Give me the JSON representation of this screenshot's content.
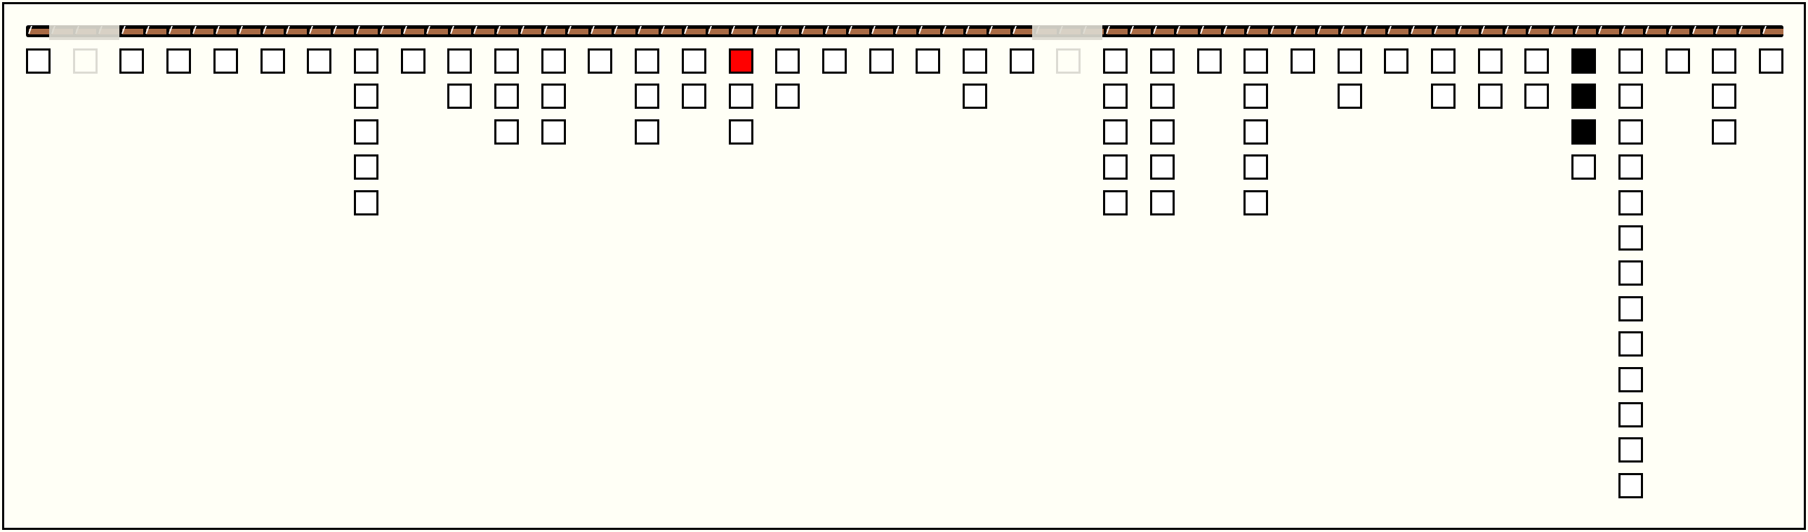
{
  "board": {
    "colors": {
      "background": "#fffff6",
      "bar": "#a86a44",
      "cell_empty": "#ffffff",
      "cell_red": "#ff0000",
      "cell_black": "#000000",
      "faded": "#dcdbd3"
    },
    "segments": 75,
    "columns": [
      {
        "cells": [
          "empty"
        ]
      },
      {
        "cells": [
          "empty"
        ],
        "faded": true
      },
      {
        "cells": [
          "empty"
        ]
      },
      {
        "cells": [
          "empty"
        ]
      },
      {
        "cells": [
          "empty"
        ]
      },
      {
        "cells": [
          "empty"
        ]
      },
      {
        "cells": [
          "empty"
        ]
      },
      {
        "cells": [
          "empty",
          "empty",
          "empty",
          "empty",
          "empty"
        ]
      },
      {
        "cells": [
          "empty"
        ]
      },
      {
        "cells": [
          "empty",
          "empty"
        ]
      },
      {
        "cells": [
          "empty",
          "empty",
          "empty"
        ]
      },
      {
        "cells": [
          "empty",
          "empty",
          "empty"
        ]
      },
      {
        "cells": [
          "empty"
        ]
      },
      {
        "cells": [
          "empty",
          "empty",
          "empty"
        ]
      },
      {
        "cells": [
          "empty",
          "empty"
        ]
      },
      {
        "cells": [
          "red",
          "empty",
          "empty"
        ]
      },
      {
        "cells": [
          "empty",
          "empty"
        ]
      },
      {
        "cells": [
          "empty"
        ]
      },
      {
        "cells": [
          "empty"
        ]
      },
      {
        "cells": [
          "empty"
        ]
      },
      {
        "cells": [
          "empty",
          "empty"
        ]
      },
      {
        "cells": [
          "empty"
        ]
      },
      {
        "cells": [
          "empty"
        ],
        "faded": true
      },
      {
        "cells": [
          "empty",
          "empty",
          "empty",
          "empty",
          "empty"
        ]
      },
      {
        "cells": [
          "empty",
          "empty",
          "empty",
          "empty",
          "empty"
        ]
      },
      {
        "cells": [
          "empty"
        ]
      },
      {
        "cells": [
          "empty",
          "empty",
          "empty",
          "empty",
          "empty"
        ]
      },
      {
        "cells": [
          "empty"
        ]
      },
      {
        "cells": [
          "empty",
          "empty"
        ]
      },
      {
        "cells": [
          "empty"
        ]
      },
      {
        "cells": [
          "empty",
          "empty"
        ]
      },
      {
        "cells": [
          "empty",
          "empty"
        ]
      },
      {
        "cells": [
          "empty",
          "empty"
        ]
      },
      {
        "cells": [
          "black",
          "black",
          "black",
          "empty"
        ]
      },
      {
        "cells": [
          "empty",
          "empty",
          "empty",
          "empty",
          "empty",
          "empty",
          "empty",
          "empty",
          "empty",
          "empty",
          "empty",
          "empty",
          "empty"
        ]
      },
      {
        "cells": [
          "empty"
        ]
      },
      {
        "cells": [
          "empty",
          "empty",
          "empty"
        ]
      },
      {
        "cells": [
          "empty"
        ]
      }
    ]
  }
}
